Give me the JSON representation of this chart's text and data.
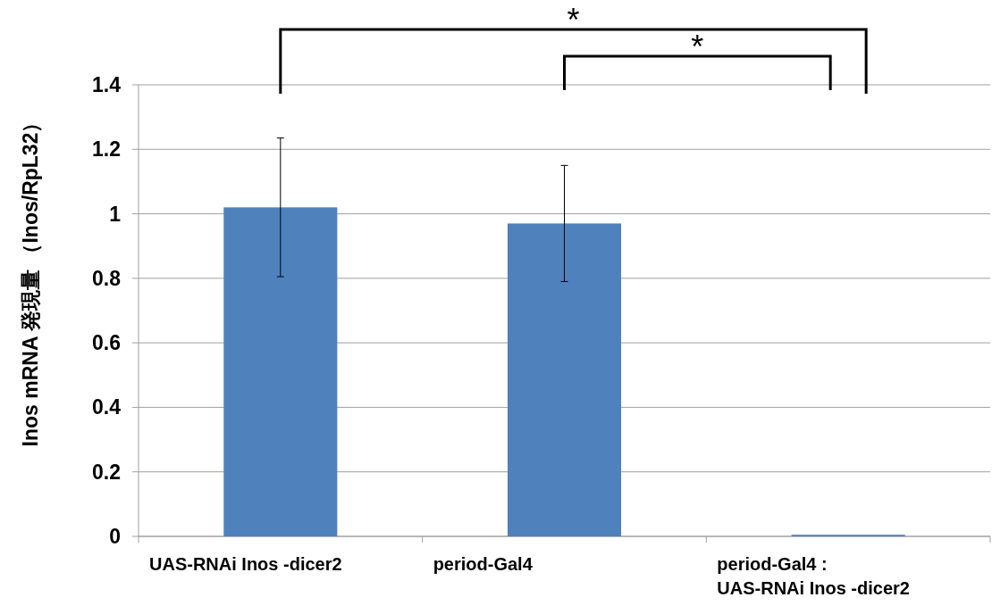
{
  "chart_data": {
    "type": "bar",
    "categories": [
      "UAS-RNAi Inos -dicer2",
      "period-Gal4",
      "period-Gal4 :\nUAS-RNAi Inos -dicer2"
    ],
    "values": [
      1.02,
      0.97,
      0.005
    ],
    "errors": [
      0.215,
      0.18,
      null
    ],
    "color": "#4f81bd",
    "ylabel": "Inos mRNA 発現量 （Inos/RpL32）",
    "ylim": [
      0,
      1.4
    ],
    "yticks": [
      0,
      0.2,
      0.4,
      0.6,
      0.8,
      1,
      1.2,
      1.4
    ],
    "grid": "y",
    "annotations": [
      "*",
      "*"
    ]
  }
}
